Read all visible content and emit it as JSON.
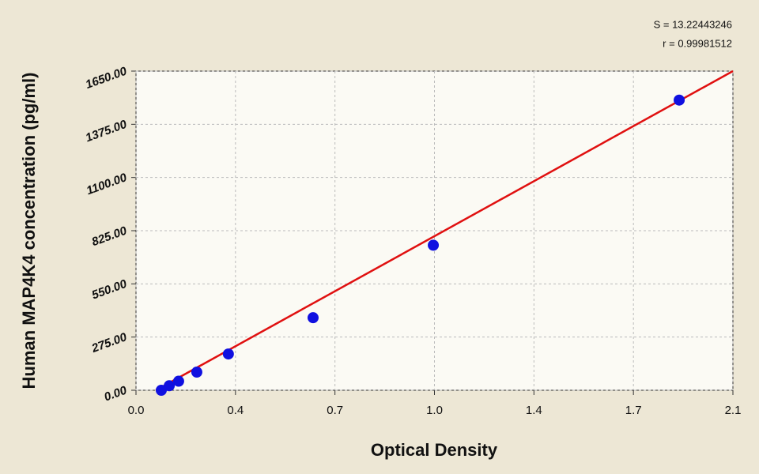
{
  "chart_data": {
    "type": "scatter",
    "x_label": "Optical Density",
    "y_label": "Human MAP4K4 concentration (pg/ml)",
    "annotations": [
      "S = 13.22443246",
      "r = 0.99981512"
    ],
    "xlim": [
      0,
      2.1
    ],
    "ylim": [
      0,
      1650
    ],
    "xticks": [
      {
        "value": 0,
        "label": "0.0"
      },
      {
        "value": 0.35,
        "label": "0.4"
      },
      {
        "value": 0.7,
        "label": "0.7"
      },
      {
        "value": 1.05,
        "label": "1.0"
      },
      {
        "value": 1.4,
        "label": "1.4"
      },
      {
        "value": 1.75,
        "label": "1.7"
      },
      {
        "value": 2.1,
        "label": "2.1"
      }
    ],
    "yticks": [
      {
        "value": 0,
        "label": "0.00"
      },
      {
        "value": 275,
        "label": "275.00"
      },
      {
        "value": 550,
        "label": "550.00"
      },
      {
        "value": 825,
        "label": "825.00"
      },
      {
        "value": 1100,
        "label": "1100.00"
      },
      {
        "value": 1375,
        "label": "1375.00"
      },
      {
        "value": 1650,
        "label": "1650.00"
      }
    ],
    "grid": true,
    "series": [
      {
        "style": "points",
        "color": "#1010e0",
        "x": [
          0.089,
          0.117,
          0.15,
          0.214,
          0.325,
          0.623,
          1.046,
          1.911
        ],
        "values": [
          0,
          23.4,
          46.9,
          93.75,
          187.5,
          375,
          750,
          1500
        ]
      },
      {
        "style": "line",
        "color": "#e01010",
        "x": [
          0.07,
          2.1
        ],
        "values": [
          0,
          1650
        ]
      }
    ]
  }
}
